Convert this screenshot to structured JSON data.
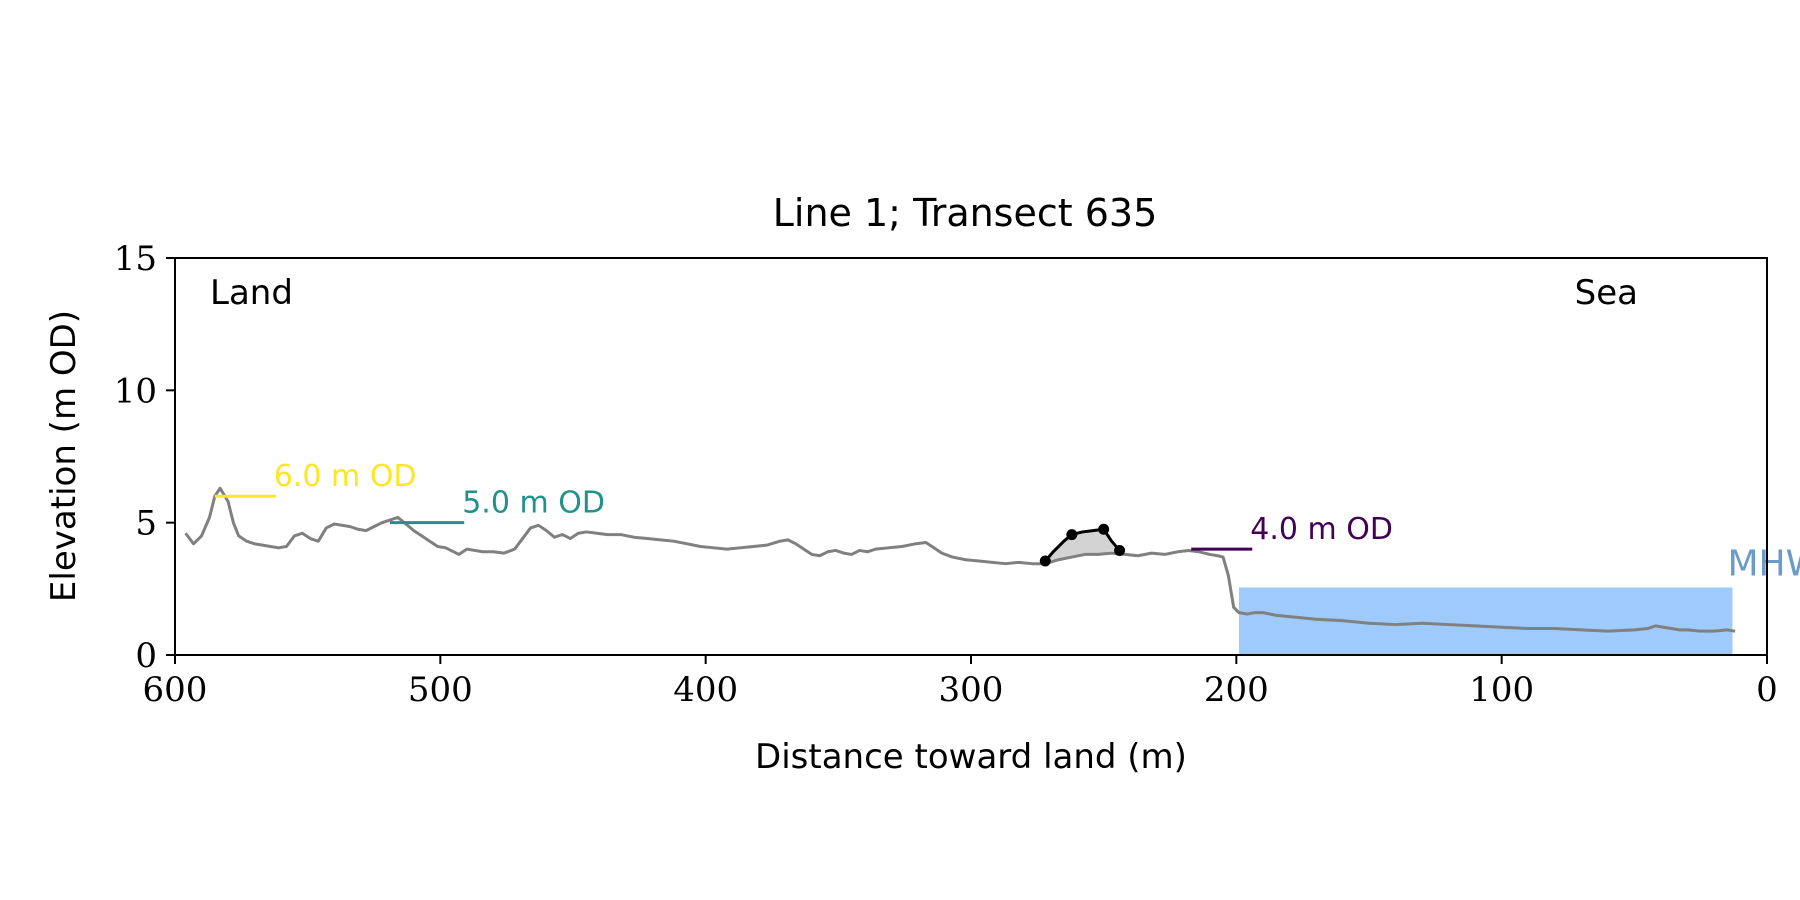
{
  "chart_data": {
    "type": "line",
    "title": "Line 1; Transect 635",
    "xlabel": "Distance toward land (m)",
    "ylabel": "Elevation (m OD)",
    "xlim": [
      600,
      0
    ],
    "ylim": [
      0,
      15
    ],
    "xticks": [
      600,
      500,
      400,
      300,
      200,
      100,
      0
    ],
    "yticks": [
      0,
      5,
      10,
      15
    ],
    "grid": false,
    "corner_labels": {
      "left": "Land",
      "right": "Sea"
    },
    "colors": {
      "profile": "#808080",
      "feature": "#000000",
      "feature_fill": "#d3d3d3",
      "mhws_fill": "#9ecbfb",
      "mhws_text": "#6b9bc9",
      "contour_6": "#fde725",
      "contour_5": "#21918c",
      "contour_4": "#440154"
    },
    "profile": {
      "x": [
        596,
        593,
        590,
        587,
        585,
        583,
        580,
        578,
        576,
        573,
        570,
        567,
        564,
        561,
        558,
        555,
        552,
        549,
        546,
        543,
        540,
        537,
        534,
        531,
        528,
        525,
        522,
        519,
        516,
        513,
        510,
        507,
        504,
        501,
        498,
        496,
        493,
        490,
        487,
        484,
        480,
        476,
        472,
        469,
        466,
        463,
        460,
        457,
        454,
        451,
        448,
        445,
        441,
        437,
        432,
        427,
        422,
        417,
        412,
        407,
        402,
        397,
        392,
        387,
        382,
        377,
        372,
        369,
        366,
        363,
        360,
        357,
        354,
        351,
        348,
        345,
        342,
        339,
        336,
        331,
        326,
        321,
        317,
        314,
        311,
        307,
        302,
        297,
        292,
        287,
        282,
        277,
        272,
        267,
        262,
        257,
        252,
        247,
        242,
        237,
        232,
        227,
        222,
        218,
        214,
        210,
        207,
        205,
        203,
        201,
        199,
        196,
        193,
        190,
        185,
        180,
        170,
        160,
        150,
        140,
        130,
        120,
        110,
        100,
        90,
        80,
        70,
        60,
        50,
        45,
        42,
        39,
        36,
        33,
        30,
        25,
        20,
        15,
        12
      ],
      "y": [
        4.6,
        4.2,
        4.5,
        5.2,
        6.0,
        6.3,
        5.8,
        5.0,
        4.5,
        4.3,
        4.2,
        4.15,
        4.1,
        4.05,
        4.1,
        4.5,
        4.6,
        4.4,
        4.3,
        4.8,
        4.95,
        4.9,
        4.85,
        4.75,
        4.7,
        4.85,
        5.0,
        5.1,
        5.2,
        4.95,
        4.7,
        4.5,
        4.3,
        4.1,
        4.05,
        3.95,
        3.8,
        4.0,
        3.95,
        3.9,
        3.9,
        3.85,
        4.0,
        4.4,
        4.8,
        4.9,
        4.7,
        4.45,
        4.55,
        4.4,
        4.6,
        4.65,
        4.6,
        4.55,
        4.55,
        4.45,
        4.4,
        4.35,
        4.3,
        4.2,
        4.1,
        4.05,
        4.0,
        4.05,
        4.1,
        4.15,
        4.3,
        4.35,
        4.2,
        4.0,
        3.8,
        3.75,
        3.9,
        3.95,
        3.85,
        3.8,
        3.95,
        3.9,
        4.0,
        4.05,
        4.1,
        4.2,
        4.25,
        4.05,
        3.85,
        3.7,
        3.6,
        3.55,
        3.5,
        3.45,
        3.5,
        3.45,
        3.45,
        3.6,
        3.7,
        3.8,
        3.8,
        3.85,
        3.8,
        3.75,
        3.85,
        3.8,
        3.9,
        3.95,
        3.9,
        3.8,
        3.75,
        3.7,
        3.0,
        1.8,
        1.6,
        1.55,
        1.6,
        1.6,
        1.5,
        1.45,
        1.35,
        1.3,
        1.2,
        1.15,
        1.2,
        1.15,
        1.1,
        1.05,
        1.0,
        1.0,
        0.95,
        0.9,
        0.95,
        1.0,
        1.1,
        1.05,
        1.0,
        0.95,
        0.95,
        0.9,
        0.9,
        0.95,
        0.9
      ]
    },
    "feature": {
      "x": [
        272,
        269,
        265,
        262,
        258,
        254,
        250,
        247,
        244
      ],
      "y": [
        3.55,
        3.9,
        4.3,
        4.55,
        4.65,
        4.7,
        4.75,
        4.3,
        3.95
      ],
      "marker_indices": [
        0,
        3,
        6,
        8
      ]
    },
    "mhws": {
      "label": "MHWS",
      "x": [
        199,
        13
      ],
      "y": 2.55
    },
    "contours": [
      {
        "label": "6.0 m OD",
        "elevation": 6.0,
        "x": [
          585,
          562
        ],
        "color_key": "contour_6"
      },
      {
        "label": "5.0 m OD",
        "elevation": 5.0,
        "x": [
          519,
          491
        ],
        "color_key": "contour_5"
      },
      {
        "label": "4.0 m OD",
        "elevation": 4.0,
        "x": [
          217,
          194
        ],
        "color_key": "contour_4"
      }
    ]
  }
}
